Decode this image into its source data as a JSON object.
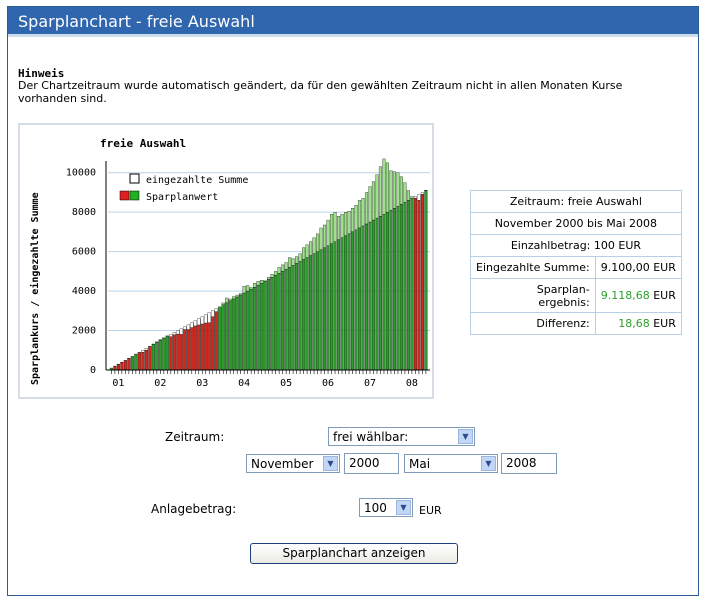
{
  "title": "Sparplanchart - freie Auswahl",
  "hint": {
    "heading": "Hinweis",
    "text": "Der Chartzeitraum wurde automatisch geändert, da für den gewählten Zeitraum nicht in allen Monaten Kurse vorhanden sind."
  },
  "chart_data": {
    "type": "bar",
    "title": "freie Auswahl",
    "ylabel": "Sparplankurs / eingezahlte Summe",
    "xlabel": "",
    "ylim": [
      0,
      11000
    ],
    "yticks": [
      0,
      2000,
      4000,
      6000,
      8000,
      10000
    ],
    "xtick_labels": [
      "01",
      "02",
      "03",
      "04",
      "05",
      "06",
      "07",
      "08"
    ],
    "legend": [
      {
        "name": "eingezahlte Summe",
        "colors": [
          "#ffffff"
        ]
      },
      {
        "name": "Sparplanwert",
        "colors": [
          "#e02020",
          "#20b020"
        ]
      }
    ],
    "colors": {
      "loss": "#cc2a1e",
      "gain": "#2e9a2e",
      "gain_light": "#9fe08c",
      "paid": "#ffffff",
      "grid": "#b9d3ea"
    },
    "months": [
      "2000-11",
      "2000-12",
      "2001-01",
      "2001-02",
      "2001-03",
      "2001-04",
      "2001-05",
      "2001-06",
      "2001-07",
      "2001-08",
      "2001-09",
      "2001-10",
      "2001-11",
      "2001-12",
      "2002-01",
      "2002-02",
      "2002-03",
      "2002-04",
      "2002-05",
      "2002-06",
      "2002-07",
      "2002-08",
      "2002-09",
      "2002-10",
      "2002-11",
      "2002-12",
      "2003-01",
      "2003-02",
      "2003-03",
      "2003-04",
      "2003-05",
      "2003-06",
      "2003-07",
      "2003-08",
      "2003-09",
      "2003-10",
      "2003-11",
      "2003-12",
      "2004-01",
      "2004-02",
      "2004-03",
      "2004-04",
      "2004-05",
      "2004-06",
      "2004-07",
      "2004-08",
      "2004-09",
      "2004-10",
      "2004-11",
      "2004-12",
      "2005-01",
      "2005-02",
      "2005-03",
      "2005-04",
      "2005-05",
      "2005-06",
      "2005-07",
      "2005-08",
      "2005-09",
      "2005-10",
      "2005-11",
      "2005-12",
      "2006-01",
      "2006-02",
      "2006-03",
      "2006-04",
      "2006-05",
      "2006-06",
      "2006-07",
      "2006-08",
      "2006-09",
      "2006-10",
      "2006-11",
      "2006-12",
      "2007-01",
      "2007-02",
      "2007-03",
      "2007-04",
      "2007-05",
      "2007-06",
      "2007-07",
      "2007-08",
      "2007-09",
      "2007-10",
      "2007-11",
      "2007-12",
      "2008-01",
      "2008-02",
      "2008-03",
      "2008-04",
      "2008-05"
    ],
    "series": [
      {
        "name": "eingezahlte Summe",
        "values": [
          100,
          200,
          300,
          400,
          500,
          600,
          700,
          800,
          900,
          1000,
          1100,
          1200,
          1300,
          1400,
          1500,
          1600,
          1700,
          1800,
          1900,
          2000,
          2100,
          2200,
          2300,
          2400,
          2500,
          2600,
          2700,
          2800,
          2900,
          3000,
          3100,
          3200,
          3300,
          3400,
          3500,
          3600,
          3700,
          3800,
          3900,
          4000,
          4100,
          4200,
          4300,
          4400,
          4500,
          4600,
          4700,
          4800,
          4900,
          5000,
          5100,
          5200,
          5300,
          5400,
          5500,
          5600,
          5700,
          5800,
          5900,
          6000,
          6100,
          6200,
          6300,
          6400,
          6500,
          6600,
          6700,
          6800,
          6900,
          7000,
          7100,
          7200,
          7300,
          7400,
          7500,
          7600,
          7700,
          7800,
          7900,
          8000,
          8100,
          8200,
          8300,
          8400,
          8500,
          8600,
          8700,
          8800,
          8900,
          9000,
          9100
        ]
      },
      {
        "name": "Sparplanwert",
        "values": [
          100,
          190,
          280,
          380,
          470,
          590,
          700,
          810,
          870,
          900,
          1000,
          1180,
          1320,
          1440,
          1550,
          1640,
          1740,
          1690,
          1780,
          1820,
          1800,
          2050,
          2050,
          2150,
          2230,
          2280,
          2330,
          2380,
          2400,
          2700,
          2950,
          3200,
          3400,
          3650,
          3600,
          3720,
          3800,
          3880,
          4250,
          4280,
          4180,
          4400,
          4500,
          4550,
          4520,
          4700,
          4850,
          5000,
          5200,
          5330,
          5450,
          5700,
          5650,
          5750,
          5900,
          6200,
          6350,
          6500,
          6700,
          6900,
          7200,
          7350,
          7600,
          7900,
          8000,
          7800,
          7900,
          8000,
          8050,
          8200,
          8350,
          8600,
          8700,
          9000,
          9300,
          9550,
          9900,
          10300,
          10700,
          10500,
          10100,
          10050,
          10000,
          9800,
          9500,
          9100,
          8800,
          8700,
          8600,
          8900,
          9118.68
        ]
      }
    ]
  },
  "info": {
    "zeitraum": "Zeitraum: freie Auswahl",
    "period": "November 2000 bis Mai 2008",
    "einzahlbetrag": "Einzahlbetrag: 100 EUR",
    "eingezahlt_label": "Eingezahlte Summe:",
    "eingezahlt_value": "9.100,00 EUR",
    "ergebnis_label_1": "Sparplan-",
    "ergebnis_label_2": "ergebnis:",
    "ergebnis_value": "9.118,68",
    "ergebnis_unit": "EUR",
    "differenz_label": "Differenz:",
    "differenz_value": "18,68",
    "differenz_unit": "EUR"
  },
  "form": {
    "zeitraum_label": "Zeitraum:",
    "zeitraum_select": "frei wählbar:",
    "start_month": "November",
    "start_year": "2000",
    "end_month": "Mai",
    "end_year": "2008",
    "anlage_label": "Anlagebetrag:",
    "anlage_value": "100",
    "anlage_unit": "EUR",
    "submit": "Sparplanchart anzeigen"
  }
}
